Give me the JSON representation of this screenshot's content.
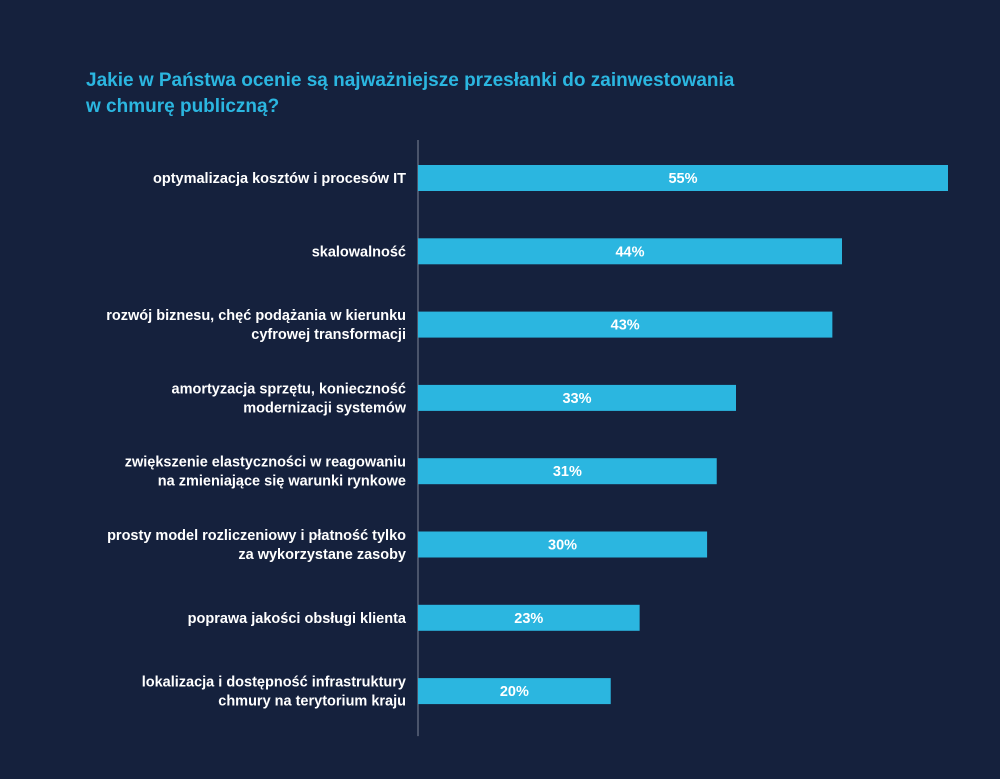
{
  "chart_data": {
    "type": "bar",
    "orientation": "horizontal",
    "title_lines": [
      "Jakie w Państwa  ocenie są najważniejsze przesłanki do zainwestowania",
      "w chmurę publiczną?"
    ],
    "categories": [
      [
        "optymalizacja kosztów i procesów IT"
      ],
      [
        "skalowalność"
      ],
      [
        "rozwój biznesu, chęć podążania w kierunku",
        "cyfrowej transformacji"
      ],
      [
        "amortyzacja sprzętu, konieczność",
        "modernizacji systemów"
      ],
      [
        "zwiększenie elastyczności w reagowaniu",
        "na zmieniające się warunki rynkowe"
      ],
      [
        "prosty model rozliczeniowy i płatność tylko",
        "za wykorzystane zasoby"
      ],
      [
        "poprawa jakości obsługi klienta"
      ],
      [
        "lokalizacja i dostępność infrastruktury",
        "chmury na terytorium kraju"
      ]
    ],
    "values": [
      55,
      44,
      43,
      33,
      31,
      30,
      23,
      20
    ],
    "value_labels": [
      "55%",
      "44%",
      "43%",
      "33%",
      "31%",
      "30%",
      "23%",
      "20%"
    ],
    "unit": "%",
    "xlim": [
      0,
      55
    ],
    "grid": false,
    "legend": "none"
  },
  "colors": {
    "background": "#15213d",
    "title": "#2bb6e0",
    "bar": "#2bb6e0",
    "label_text": "#ffffff",
    "value_text": "#ffffff",
    "axis": "#7f8799"
  }
}
